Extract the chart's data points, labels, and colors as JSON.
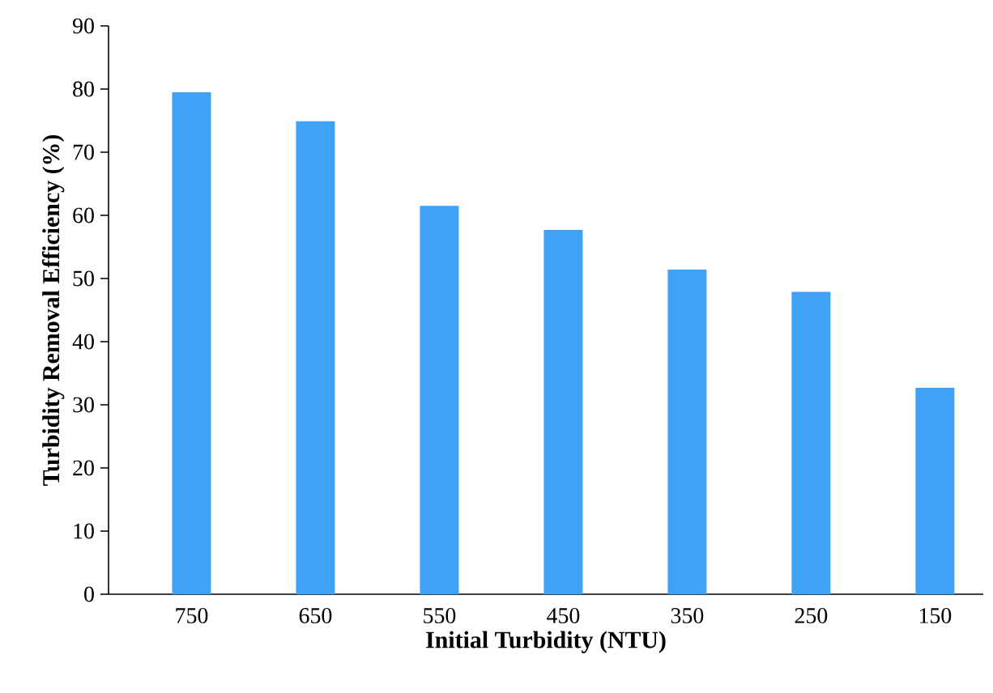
{
  "chart_data": {
    "type": "bar",
    "xlabel": "Initial Turbidity (NTU)",
    "ylabel": "Turbidity Removal Efficiency  (%)",
    "categories": [
      "750",
      "650",
      "550",
      "450",
      "350",
      "250",
      "150"
    ],
    "values": [
      79.5,
      74.9,
      61.5,
      57.7,
      51.4,
      47.9,
      32.7
    ],
    "color": "#3fa2f6",
    "ylim": [
      0,
      90
    ],
    "yticks": [
      0,
      10,
      20,
      30,
      40,
      50,
      60,
      70,
      80,
      90
    ]
  }
}
